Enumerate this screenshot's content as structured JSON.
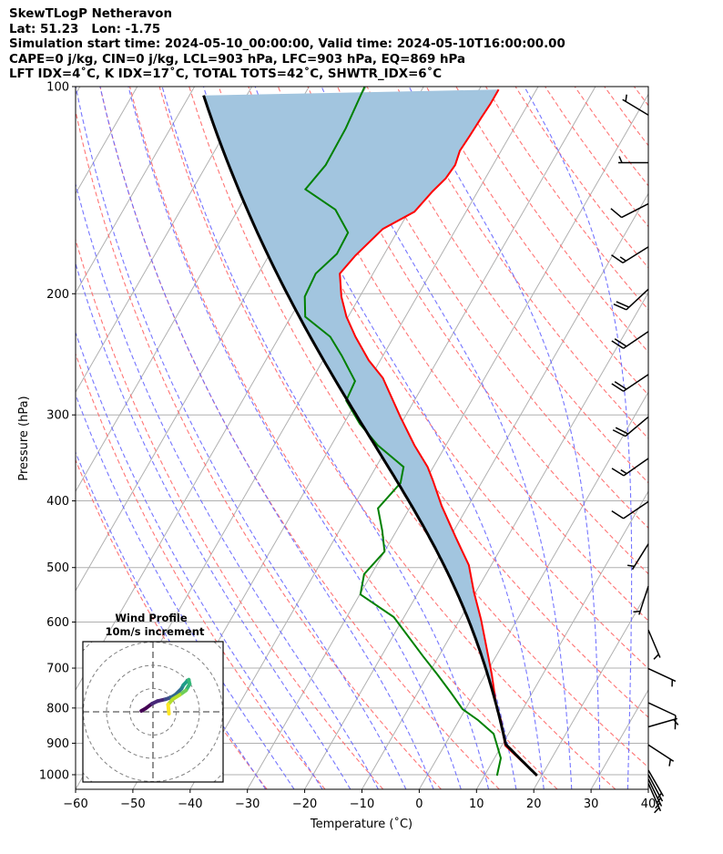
{
  "header": {
    "line1": "SkewTLogP Netheravon",
    "line2": "Lat: 51.23   Lon: -1.75",
    "line3": "Simulation start time: 2024-05-10_00:00:00, Valid time: 2024-05-10T16:00:00.00",
    "line4": "CAPE=0 j/kg, CIN=0 j/kg, LCL=903 hPa, LFC=903 hPa, EQ=869 hPa",
    "line5": "LFT IDX=4˚C, K IDX=17˚C, TOTAL TOTS=42˚C, SHWTR_IDX=6˚C"
  },
  "chart_data": {
    "type": "line",
    "subtype": "skew-T log-P",
    "xlabel": "Temperature (˚C)",
    "ylabel": "Pressure (hPa)",
    "xlim": [
      -60,
      40
    ],
    "ylim": [
      1050,
      100
    ],
    "xticks": [
      "−60",
      "−50",
      "−40",
      "−30",
      "−20",
      "−10",
      "0",
      "10",
      "20",
      "30",
      "40"
    ],
    "xtick_values": [
      -60,
      -50,
      -40,
      -30,
      -20,
      -10,
      0,
      10,
      20,
      30,
      40
    ],
    "yticks": [
      "100",
      "200",
      "300",
      "400",
      "500",
      "600",
      "700",
      "800",
      "900",
      "1000"
    ],
    "ytick_values": [
      100,
      200,
      300,
      400,
      500,
      600,
      700,
      800,
      900,
      1000
    ],
    "grid": true,
    "colors": {
      "temperature": "#ff0000",
      "dewpoint": "#008000",
      "parcel": "#000000",
      "cape_fill": "#a2c5df",
      "dry_adiabat": "#ff6666",
      "moist_adiabat": "#6666ff",
      "isotherm": "#b0b0b0"
    },
    "temperature": {
      "pressure": [
        1003,
        907,
        833,
        795,
        715,
        595,
        543,
        496,
        452,
        407,
        373,
        357,
        332,
        302,
        265,
        250,
        231,
        216,
        202,
        187,
        176,
        161,
        152,
        142,
        136,
        130,
        124,
        118,
        111,
        106,
        101
      ],
      "values": [
        19.2,
        10.6,
        7.3,
        5.1,
        1.1,
        -6.3,
        -10.3,
        -13.9,
        -19.0,
        -24.6,
        -28.8,
        -31.0,
        -35.5,
        -40.8,
        -47.8,
        -52.0,
        -56.7,
        -60.3,
        -63.2,
        -65.8,
        -64.9,
        -62.8,
        -59.0,
        -57.9,
        -56.9,
        -56.6,
        -57.2,
        -57.0,
        -56.8,
        -56.6,
        -56.6
      ]
    },
    "dewpoint": {
      "pressure": [
        1003,
        946,
        872,
        833,
        803,
        760,
        715,
        673,
        590,
        547,
        511,
        474,
        442,
        410,
        377,
        357,
        332,
        309,
        286,
        268,
        246,
        231,
        216,
        202,
        187,
        175,
        163,
        151,
        141,
        130,
        115,
        100
      ],
      "values": [
        12.2,
        11.1,
        7.4,
        3.3,
        -0.5,
        -4.2,
        -8.4,
        -12.7,
        -21.8,
        -29.9,
        -31.3,
        -30.0,
        -32.5,
        -35.5,
        -34.1,
        -35.2,
        -41.9,
        -47.2,
        -51.9,
        -52.3,
        -57.2,
        -61.1,
        -67.5,
        -69.6,
        -70.0,
        -68.3,
        -68.5,
        -73.0,
        -80.3,
        -79.2,
        -79.4,
        -80.3
      ]
    },
    "parcel": {
      "surface_pressure": 1003,
      "surface_temperature": 19.2,
      "lcl_pressure": 903,
      "top_pressure": 100
    },
    "wind_barbs": [
      {
        "pressure": 110,
        "direction": 301,
        "speed_kt": 5
      },
      {
        "pressure": 129,
        "direction": 270,
        "speed_kt": 5
      },
      {
        "pressure": 148,
        "direction": 243,
        "speed_kt": 10
      },
      {
        "pressure": 171,
        "direction": 238,
        "speed_kt": 15
      },
      {
        "pressure": 197,
        "direction": 227,
        "speed_kt": 20
      },
      {
        "pressure": 227,
        "direction": 236,
        "speed_kt": 20
      },
      {
        "pressure": 262,
        "direction": 236,
        "speed_kt": 20
      },
      {
        "pressure": 302,
        "direction": 230,
        "speed_kt": 20
      },
      {
        "pressure": 347,
        "direction": 235,
        "speed_kt": 15
      },
      {
        "pressure": 401,
        "direction": 236,
        "speed_kt": 10
      },
      {
        "pressure": 462,
        "direction": 212,
        "speed_kt": 5
      },
      {
        "pressure": 532,
        "direction": 198,
        "speed_kt": 5
      },
      {
        "pressure": 616,
        "direction": 157,
        "speed_kt": 5
      },
      {
        "pressure": 701,
        "direction": 115,
        "speed_kt": 5
      },
      {
        "pressure": 786,
        "direction": 115,
        "speed_kt": 10
      },
      {
        "pressure": 852,
        "direction": 74,
        "speed_kt": 5
      },
      {
        "pressure": 905,
        "direction": 123,
        "speed_kt": 5
      },
      {
        "pressure": 985,
        "direction": 150,
        "speed_kt": 5
      },
      {
        "pressure": 1000,
        "direction": 152,
        "speed_kt": 5
      },
      {
        "pressure": 1015,
        "direction": 154,
        "speed_kt": 5
      },
      {
        "pressure": 1030,
        "direction": 156,
        "speed_kt": 5
      }
    ],
    "hodograph": {
      "title": "Wind Profile",
      "subtitle": "10m/s increment",
      "ring_increment_ms": 10,
      "u": [
        -5.0,
        -3.1,
        -0.4,
        1.9,
        5.4,
        7.7,
        9.6,
        12.3,
        13.1,
        14.6,
        15.4,
        15.8,
        14.2,
        11.5,
        8.5,
        6.5,
        6.9
      ],
      "v": [
        0.4,
        1.5,
        3.5,
        4.6,
        5.4,
        6.2,
        7.3,
        10.0,
        11.5,
        13.1,
        13.8,
        11.9,
        9.2,
        7.3,
        5.4,
        3.1,
        -0.8
      ]
    }
  }
}
